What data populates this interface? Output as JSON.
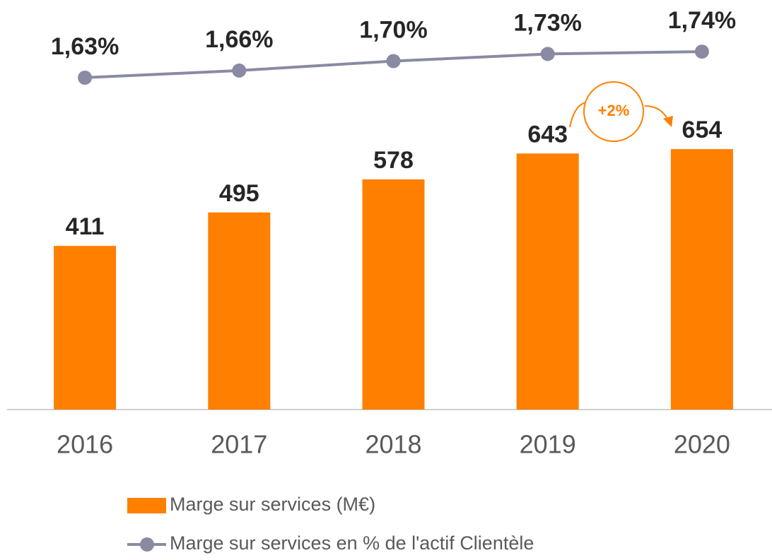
{
  "chart_data": {
    "type": "bar",
    "categories": [
      "2016",
      "2017",
      "2018",
      "2019",
      "2020"
    ],
    "series": [
      {
        "name": "Marge sur services (M€)",
        "color": "#ff7f00",
        "values": [
          411,
          495,
          578,
          643,
          654
        ]
      },
      {
        "name": "Marge sur services en % de l'actif Clientèle",
        "type": "line",
        "axis": "y2",
        "color": "#8a8aa3",
        "values": [
          1.63,
          1.66,
          1.7,
          1.73,
          1.74
        ],
        "value_labels": [
          "1,63%",
          "1,66%",
          "1,70%",
          "1,73%",
          "1,74%"
        ]
      }
    ],
    "ylim": [
      0,
      1000
    ],
    "y2lim": [
      0.23,
      1.91
    ],
    "annotation": "+2%",
    "legend": "bottom"
  }
}
